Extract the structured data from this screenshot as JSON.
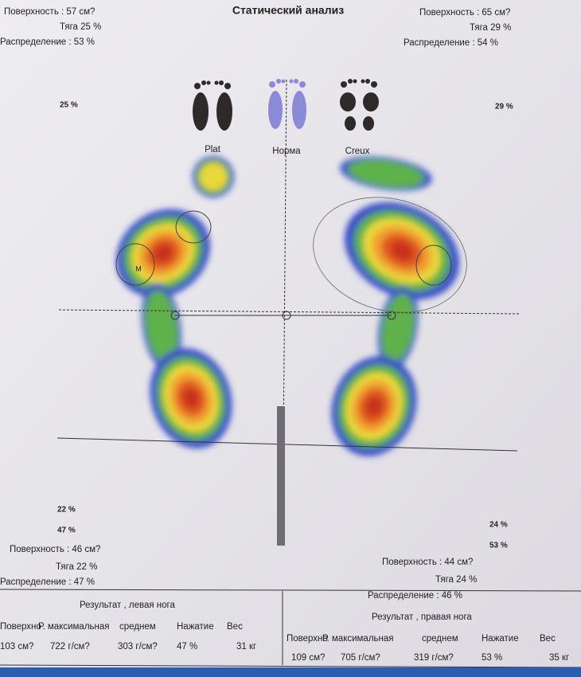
{
  "title": "Статический анализ",
  "top_left": {
    "surface": "Поверхность :  57 см?",
    "traction": "Тяга 25 %",
    "distribution": "Распределение : 53 %",
    "forefoot": "25 %"
  },
  "top_right": {
    "surface": "Поверхность :  65 см?",
    "traction": "Тяга 29 %",
    "distribution": "Распределение : 54 %",
    "forefoot": "29 %"
  },
  "reference_feet": [
    "Plat",
    "Норма",
    "Creux"
  ],
  "marker": "M",
  "bottom_left": {
    "rear_a": "22 %",
    "rear_b": "47 %",
    "surface": "Поверхность :  46 см?",
    "traction": "Тяга 22 %",
    "distribution": "Распределение : 47 %"
  },
  "bottom_right": {
    "rear_a": "24 %",
    "rear_b": "53 %",
    "surface": "Поверхность :  44 см?",
    "traction": "Тяга 24 %",
    "distribution": "Распределение : 46 %"
  },
  "results": [
    {
      "title": "Результат , левая нога",
      "columns": [
        "Поверхно",
        "Р. максимальная",
        "среднем",
        "Нажатие",
        "Вес"
      ],
      "values": [
        "103 см?",
        "722 г/см?",
        "303 г/см?",
        "47 %",
        "31 кг"
      ]
    },
    {
      "title": "Результат , правая нога",
      "columns": [
        "Поверхно",
        "Р. максимальная",
        "среднем",
        "Нажатие",
        "Вес"
      ],
      "values": [
        "109 см?",
        "705 г/см?",
        "319 г/см?",
        "53 %",
        "35 кг"
      ]
    }
  ]
}
